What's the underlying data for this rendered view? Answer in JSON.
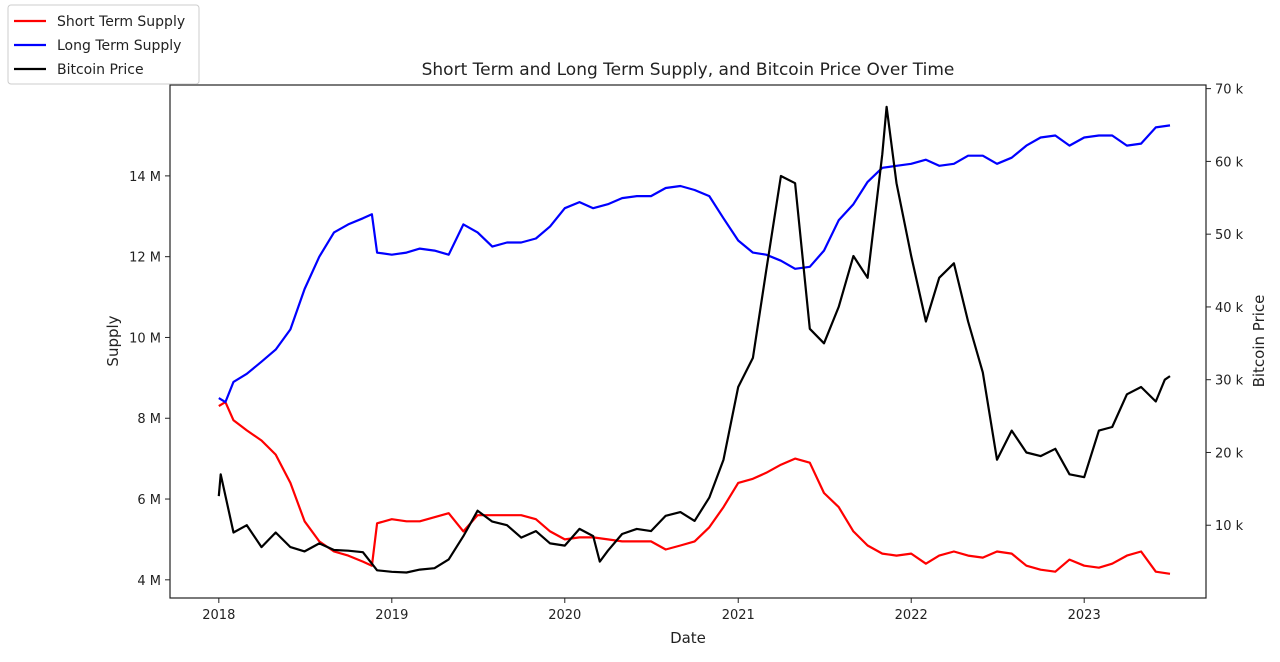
{
  "chart_data": {
    "type": "line",
    "title": "Short Term and Long Term Supply, and Bitcoin Price Over Time",
    "xlabel": "Date",
    "ylabel": "Supply",
    "y2label": "Bitcoin Price",
    "xlim": [
      "2017-09-20",
      "2023-09-15"
    ],
    "ylim": [
      3.55,
      16.25
    ],
    "y2lim": [
      0,
      70.5
    ],
    "x_ticks": [
      "2018",
      "2019",
      "2020",
      "2021",
      "2022",
      "2023"
    ],
    "y_ticks": [
      {
        "value": 4,
        "label": "4 M"
      },
      {
        "value": 6,
        "label": "6 M"
      },
      {
        "value": 8,
        "label": "8 M"
      },
      {
        "value": 10,
        "label": "10 M"
      },
      {
        "value": 12,
        "label": "12 M"
      },
      {
        "value": 14,
        "label": "14 M"
      }
    ],
    "y2_ticks": [
      {
        "value": 10,
        "label": "10 k"
      },
      {
        "value": 20,
        "label": "20 k"
      },
      {
        "value": 30,
        "label": "30 k"
      },
      {
        "value": 40,
        "label": "40 k"
      },
      {
        "value": 50,
        "label": "50 k"
      },
      {
        "value": 60,
        "label": "60 k"
      },
      {
        "value": 70,
        "label": "70 k"
      }
    ],
    "grid": false,
    "legend": {
      "placement": "top-left, outside"
    },
    "series": [
      {
        "name": "Short Term Supply",
        "axis": "left",
        "color": "#ff0000",
        "x": [
          "2018-01",
          "2018-01-15",
          "2018-02",
          "2018-03",
          "2018-04",
          "2018-05",
          "2018-06",
          "2018-07",
          "2018-08",
          "2018-09",
          "2018-10",
          "2018-11",
          "2018-11-20",
          "2018-12",
          "2019-01",
          "2019-02",
          "2019-03",
          "2019-04",
          "2019-05",
          "2019-06",
          "2019-07",
          "2019-08",
          "2019-09",
          "2019-10",
          "2019-11",
          "2019-12",
          "2020-01",
          "2020-02",
          "2020-03",
          "2020-04",
          "2020-05",
          "2020-06",
          "2020-07",
          "2020-08",
          "2020-09",
          "2020-10",
          "2020-11",
          "2020-12",
          "2021-01",
          "2021-02",
          "2021-03",
          "2021-04",
          "2021-05",
          "2021-06",
          "2021-07",
          "2021-08",
          "2021-09",
          "2021-10",
          "2021-11",
          "2021-12",
          "2022-01",
          "2022-02",
          "2022-03",
          "2022-04",
          "2022-05",
          "2022-06",
          "2022-07",
          "2022-08",
          "2022-09",
          "2022-10",
          "2022-11",
          "2022-12",
          "2023-01",
          "2023-02",
          "2023-03",
          "2023-04",
          "2023-05",
          "2023-06",
          "2023-07"
        ],
        "values": [
          8.3,
          8.4,
          7.95,
          7.7,
          7.45,
          7.1,
          6.4,
          5.45,
          4.95,
          4.7,
          4.6,
          4.45,
          4.35,
          5.4,
          5.5,
          5.45,
          5.45,
          5.55,
          5.65,
          5.2,
          5.6,
          5.6,
          5.6,
          5.6,
          5.5,
          5.2,
          5.0,
          5.05,
          5.05,
          5.0,
          4.95,
          4.95,
          4.95,
          4.75,
          4.85,
          4.95,
          5.3,
          5.8,
          6.4,
          6.5,
          6.65,
          6.85,
          7.0,
          6.9,
          6.15,
          5.8,
          5.2,
          4.85,
          4.65,
          4.6,
          4.65,
          4.4,
          4.6,
          4.7,
          4.6,
          4.55,
          4.7,
          4.65,
          4.35,
          4.25,
          4.2,
          4.5,
          4.35,
          4.3,
          4.4,
          4.6,
          4.7,
          4.2,
          4.15
        ]
      },
      {
        "name": "Long Term Supply",
        "axis": "left",
        "color": "#0000ff",
        "x": [
          "2018-01",
          "2018-01-15",
          "2018-02",
          "2018-03",
          "2018-04",
          "2018-05",
          "2018-06",
          "2018-07",
          "2018-08",
          "2018-09",
          "2018-10",
          "2018-11",
          "2018-11-20",
          "2018-12",
          "2019-01",
          "2019-02",
          "2019-03",
          "2019-04",
          "2019-05",
          "2019-06",
          "2019-07",
          "2019-08",
          "2019-09",
          "2019-10",
          "2019-11",
          "2019-12",
          "2020-01",
          "2020-02",
          "2020-03",
          "2020-04",
          "2020-05",
          "2020-06",
          "2020-07",
          "2020-08",
          "2020-09",
          "2020-10",
          "2020-11",
          "2020-12",
          "2021-01",
          "2021-02",
          "2021-03",
          "2021-04",
          "2021-05",
          "2021-06",
          "2021-07",
          "2021-08",
          "2021-09",
          "2021-10",
          "2021-11",
          "2021-12",
          "2022-01",
          "2022-02",
          "2022-03",
          "2022-04",
          "2022-05",
          "2022-06",
          "2022-07",
          "2022-08",
          "2022-09",
          "2022-10",
          "2022-11",
          "2022-12",
          "2023-01",
          "2023-02",
          "2023-03",
          "2023-04",
          "2023-05",
          "2023-06",
          "2023-07"
        ],
        "values": [
          8.5,
          8.4,
          8.9,
          9.1,
          9.4,
          9.7,
          10.2,
          11.2,
          12.0,
          12.6,
          12.8,
          12.95,
          13.05,
          12.1,
          12.05,
          12.1,
          12.2,
          12.15,
          12.05,
          12.8,
          12.6,
          12.25,
          12.35,
          12.35,
          12.45,
          12.75,
          13.2,
          13.35,
          13.2,
          13.3,
          13.45,
          13.5,
          13.5,
          13.7,
          13.75,
          13.65,
          13.5,
          12.95,
          12.4,
          12.1,
          12.05,
          11.9,
          11.7,
          11.75,
          12.15,
          12.9,
          13.3,
          13.85,
          14.2,
          14.25,
          14.3,
          14.4,
          14.25,
          14.3,
          14.5,
          14.5,
          14.3,
          14.45,
          14.75,
          14.95,
          15.0,
          14.75,
          14.95,
          15.0,
          15.0,
          14.75,
          14.8,
          15.2,
          15.25
        ]
      },
      {
        "name": "Bitcoin Price",
        "axis": "right",
        "color": "#000000",
        "x": [
          "2018-01",
          "2018-01-05",
          "2018-02",
          "2018-03",
          "2018-04",
          "2018-05",
          "2018-06",
          "2018-07",
          "2018-08",
          "2018-09",
          "2018-10",
          "2018-11",
          "2018-12",
          "2019-01",
          "2019-02",
          "2019-03",
          "2019-04",
          "2019-05",
          "2019-06",
          "2019-07",
          "2019-08",
          "2019-09",
          "2019-10",
          "2019-11",
          "2019-12",
          "2020-01",
          "2020-02",
          "2020-03",
          "2020-03-15",
          "2020-04",
          "2020-05",
          "2020-06",
          "2020-07",
          "2020-08",
          "2020-09",
          "2020-10",
          "2020-11",
          "2020-12",
          "2021-01",
          "2021-02",
          "2021-03",
          "2021-04",
          "2021-05",
          "2021-06",
          "2021-07",
          "2021-08",
          "2021-09",
          "2021-10",
          "2021-11",
          "2021-11-10",
          "2021-12",
          "2022-01",
          "2022-02",
          "2022-03",
          "2022-04",
          "2022-05",
          "2022-06",
          "2022-07",
          "2022-08",
          "2022-09",
          "2022-10",
          "2022-11",
          "2022-12",
          "2023-01",
          "2023-02",
          "2023-03",
          "2023-04",
          "2023-05",
          "2023-06",
          "2023-06-20",
          "2023-07"
        ],
        "values": [
          14,
          17,
          9,
          10,
          7,
          9,
          7,
          6.4,
          7.5,
          6.6,
          6.5,
          6.3,
          3.8,
          3.6,
          3.5,
          3.9,
          4.1,
          5.3,
          8.5,
          12,
          10.5,
          10,
          8.3,
          9.2,
          7.5,
          7.2,
          9.5,
          8.5,
          5.0,
          6.5,
          8.8,
          9.5,
          9.2,
          11.3,
          11.8,
          10.6,
          13.8,
          19,
          29,
          33,
          45,
          58,
          57,
          37,
          35,
          40,
          47,
          44,
          61,
          67.5,
          57,
          47,
          38,
          44,
          46,
          38,
          31,
          19,
          23,
          20,
          19.5,
          20.5,
          17,
          16.6,
          23,
          23.5,
          28,
          29,
          27,
          30,
          30.5
        ]
      }
    ]
  }
}
